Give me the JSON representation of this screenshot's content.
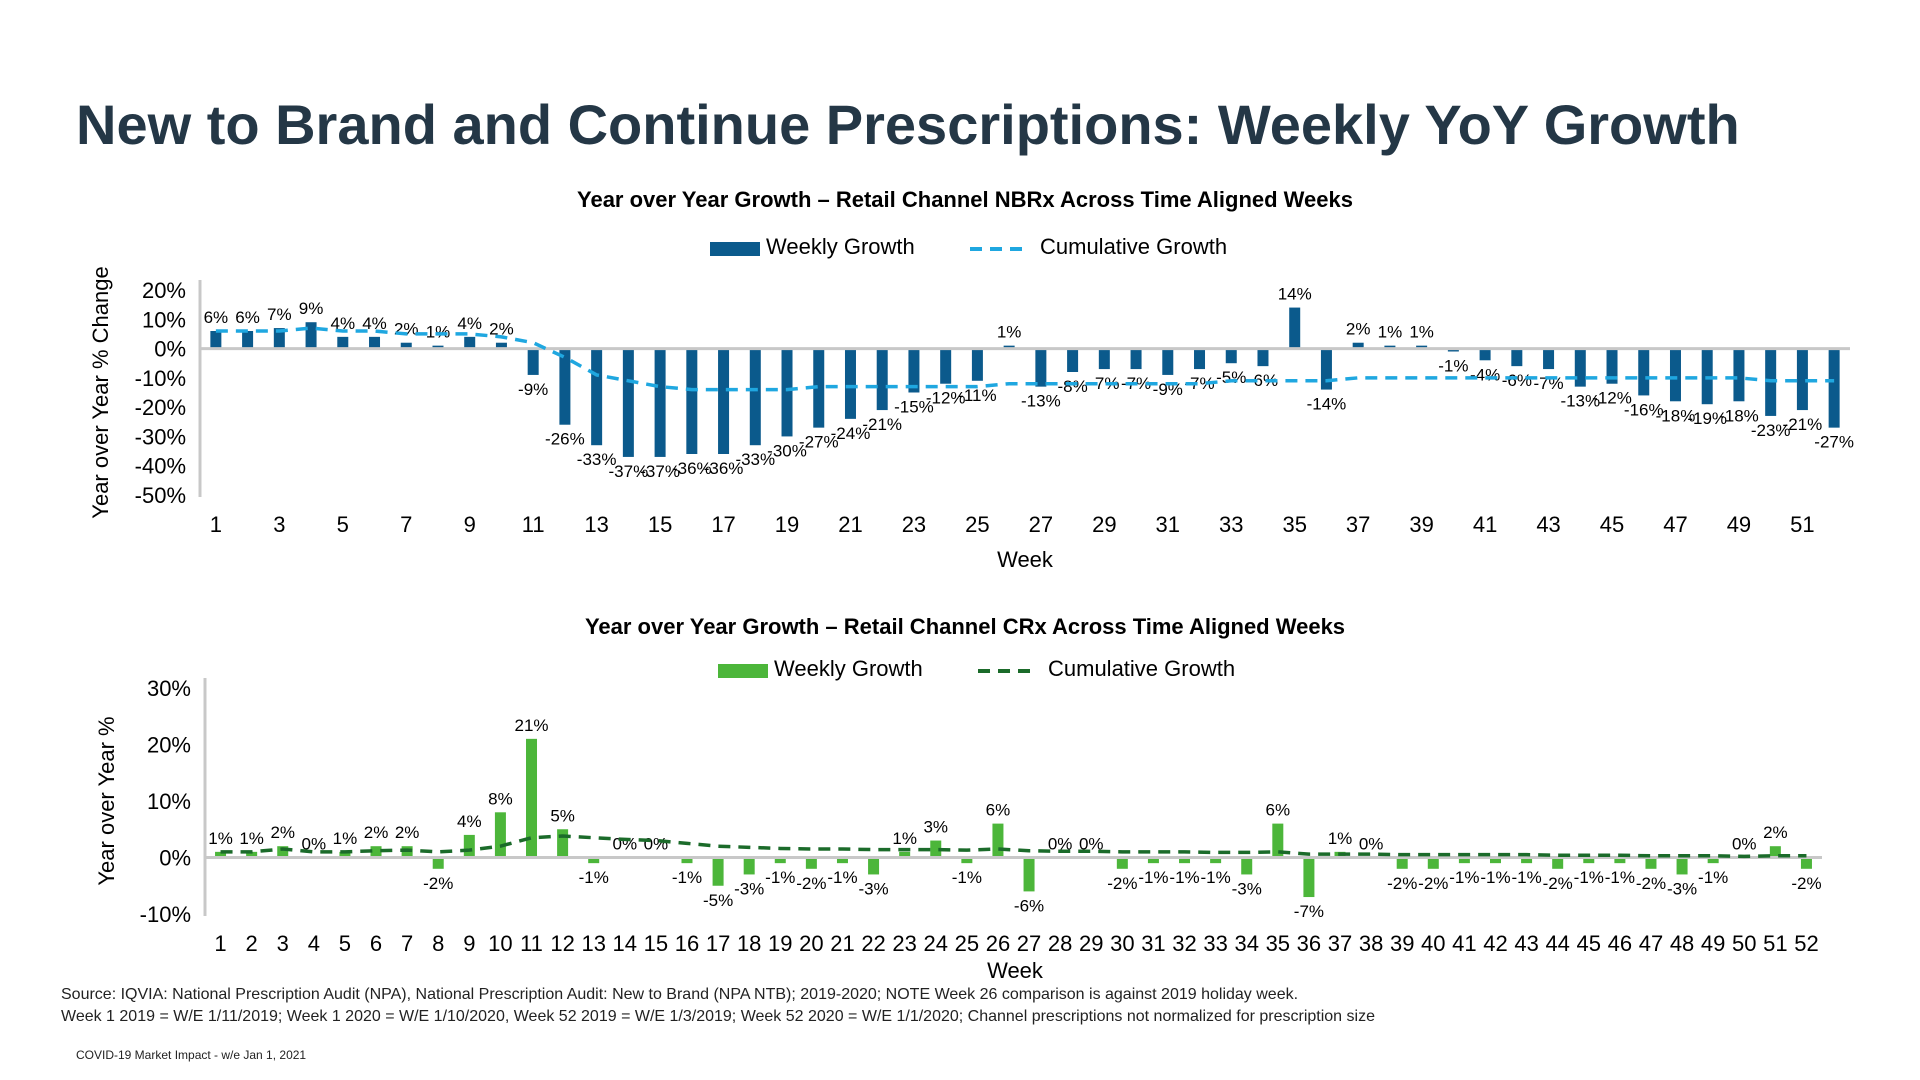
{
  "page": {
    "title": "New to Brand and Continue Prescriptions: Weekly YoY Growth",
    "source_line1": "Source: IQVIA: National Prescription Audit (NPA), National Prescription Audit: New to Brand (NPA NTB); 2019-2020; NOTE Week 26 comparison is against 2019 holiday week.",
    "source_line2": "Week 1 2019 = W/E 1/11/2019; Week 1 2020 = W/E 1/10/2020, Week 52 2019 = W/E 1/3/2019; Week 52 2020 = W/E 1/1/2020; Channel prescriptions not normalized for prescription size",
    "footer": "COVID-19 Market Impact - w/e Jan 1, 2021"
  },
  "colors": {
    "title": "#243746",
    "nbrx_bar": "#0B5A8C",
    "nbrx_line": "#1FA7E0",
    "crx_bar": "#4CB63A",
    "crx_line": "#1B6B2A",
    "axis": "#C8C8C8"
  },
  "chart_data": [
    {
      "type": "bar",
      "title": "Year over Year Growth – Retail Channel NBRx Across Time Aligned Weeks",
      "xlabel": "Week",
      "ylabel": "Year over Year % Change",
      "ylim": [
        -50,
        20
      ],
      "yticks": [
        "20%",
        "10%",
        "0%",
        "-10%",
        "-20%",
        "-30%",
        "-40%",
        "-50%"
      ],
      "xtick_labels": [
        "1",
        "3",
        "5",
        "7",
        "9",
        "11",
        "13",
        "15",
        "17",
        "19",
        "21",
        "23",
        "25",
        "27",
        "29",
        "31",
        "33",
        "35",
        "37",
        "39",
        "41",
        "43",
        "45",
        "47",
        "49",
        "51"
      ],
      "legend_position": "top-center",
      "x": [
        1,
        2,
        3,
        4,
        5,
        6,
        7,
        8,
        9,
        10,
        11,
        12,
        13,
        14,
        15,
        16,
        17,
        18,
        19,
        20,
        21,
        22,
        23,
        24,
        25,
        26,
        27,
        28,
        29,
        30,
        31,
        32,
        33,
        34,
        35,
        36,
        37,
        38,
        39,
        40,
        41,
        42,
        43,
        44,
        45,
        46,
        47,
        48,
        49,
        50,
        51,
        52
      ],
      "series": [
        {
          "name": "Weekly Growth",
          "kind": "bar",
          "values": [
            6,
            6,
            7,
            9,
            4,
            4,
            2,
            1,
            4,
            2,
            -9,
            -26,
            -33,
            -37,
            -37,
            -36,
            -36,
            -33,
            -30,
            -27,
            -24,
            -21,
            -15,
            -12,
            -11,
            1,
            -13,
            -8,
            -7,
            -7,
            -9,
            -7,
            -5,
            -6,
            14,
            -14,
            2,
            1,
            1,
            -1,
            -4,
            -6,
            -7,
            -13,
            -12,
            -16,
            -18,
            -19,
            -18,
            -23,
            -21,
            -27
          ],
          "labels": [
            "6%",
            "6%",
            "7%",
            "9%",
            "4%",
            "4%",
            "2%",
            "1%",
            "4%",
            "2%",
            "-9%",
            "-26%",
            "-33%",
            "-37%",
            "-37%",
            "-36%",
            "-36%",
            "-33%",
            "-30%",
            "-27%",
            "-24%",
            "-21%",
            "-15%",
            "-12%",
            "-11%",
            "1%",
            "-13%",
            "-8%",
            "-7%",
            "-7%",
            "-9%",
            "-7%",
            "-5%",
            "-6%",
            "14%",
            "-14%",
            "2%",
            "1%",
            "1%",
            "-1%",
            "-4%",
            "-6%",
            "-7%",
            "-13%",
            "-12%",
            "-16%",
            "-18%",
            "-19%",
            "-18%",
            "-23%",
            "-21%",
            "-27%"
          ]
        },
        {
          "name": "Cumulative Growth",
          "kind": "line",
          "values": [
            6,
            6,
            6,
            7,
            6,
            6,
            5,
            5,
            5,
            4,
            2,
            -3,
            -9,
            -11,
            -13,
            -14,
            -14,
            -14,
            -14,
            -13,
            -13,
            -13,
            -13,
            -13,
            -13,
            -12,
            -12,
            -12,
            -12,
            -12,
            -12,
            -12,
            -11,
            -11,
            -11,
            -11,
            -10,
            -10,
            -10,
            -10,
            -10,
            -10,
            -10,
            -10,
            -10,
            -10,
            -10,
            -10,
            -10,
            -11,
            -11,
            -11
          ]
        }
      ]
    },
    {
      "type": "bar",
      "title": "Year over Year Growth – Retail Channel CRx Across Time Aligned Weeks",
      "xlabel": "Week",
      "ylabel": "Year over Year %",
      "ylim": [
        -10,
        30
      ],
      "yticks": [
        "30%",
        "20%",
        "10%",
        "0%",
        "-10%"
      ],
      "xtick_labels": [
        "1",
        "2",
        "3",
        "4",
        "5",
        "6",
        "7",
        "8",
        "9",
        "10",
        "11",
        "12",
        "13",
        "14",
        "15",
        "16",
        "17",
        "18",
        "19",
        "20",
        "21",
        "22",
        "23",
        "24",
        "25",
        "26",
        "27",
        "28",
        "29",
        "30",
        "31",
        "32",
        "33",
        "34",
        "35",
        "36",
        "37",
        "38",
        "39",
        "40",
        "41",
        "42",
        "43",
        "44",
        "45",
        "46",
        "47",
        "48",
        "49",
        "50",
        "51",
        "52"
      ],
      "legend_position": "top-center",
      "x": [
        1,
        2,
        3,
        4,
        5,
        6,
        7,
        8,
        9,
        10,
        11,
        12,
        13,
        14,
        15,
        16,
        17,
        18,
        19,
        20,
        21,
        22,
        23,
        24,
        25,
        26,
        27,
        28,
        29,
        30,
        31,
        32,
        33,
        34,
        35,
        36,
        37,
        38,
        39,
        40,
        41,
        42,
        43,
        44,
        45,
        46,
        47,
        48,
        49,
        50,
        51,
        52
      ],
      "series": [
        {
          "name": "Weekly Growth",
          "kind": "bar",
          "values": [
            1,
            1,
            2,
            0,
            1,
            2,
            2,
            -2,
            4,
            8,
            21,
            5,
            -1,
            0,
            0,
            -1,
            -5,
            -3,
            -1,
            -2,
            -1,
            -3,
            1,
            3,
            -1,
            6,
            -6,
            0,
            0,
            -2,
            -1,
            -1,
            -1,
            -3,
            6,
            -7,
            1,
            0,
            -2,
            -2,
            -1,
            -1,
            -1,
            -2,
            -1,
            -1,
            -2,
            -3,
            -1,
            0,
            2,
            -2
          ],
          "labels": [
            "1%",
            "1%",
            "2%",
            "0%",
            "1%",
            "2%",
            "2%",
            "-2%",
            "4%",
            "8%",
            "21%",
            "5%",
            "-1%",
            "0%",
            "0%",
            "-1%",
            "-5%",
            "-3%",
            "-1%",
            "-2%",
            "-1%",
            "-3%",
            "1%",
            "3%",
            "-1%",
            "6%",
            "-6%",
            "0%",
            "0%",
            "-2%",
            "-1%",
            "-1%",
            "-1%",
            "-3%",
            "6%",
            "-7%",
            "1%",
            "0%",
            "-2%",
            "-2%",
            "-1%",
            "-1%",
            "-1%",
            "-2%",
            "-1%",
            "-1%",
            "-2%",
            "-3%",
            "-1%",
            "0%",
            "2%",
            "-2%"
          ]
        },
        {
          "name": "Cumulative Growth",
          "kind": "line",
          "values": [
            1,
            1,
            1.5,
            1,
            1,
            1.2,
            1.3,
            1,
            1.3,
            2,
            3.5,
            3.8,
            3.5,
            3.2,
            3,
            2.5,
            2,
            1.8,
            1.6,
            1.5,
            1.5,
            1.4,
            1.4,
            1.4,
            1.3,
            1.5,
            1.2,
            1.1,
            1.1,
            1,
            1,
            1,
            0.9,
            0.9,
            1,
            0.6,
            0.6,
            0.6,
            0.5,
            0.5,
            0.5,
            0.5,
            0.5,
            0.4,
            0.4,
            0.4,
            0.3,
            0.3,
            0.3,
            0.2,
            0.3,
            0.3
          ]
        }
      ]
    }
  ]
}
